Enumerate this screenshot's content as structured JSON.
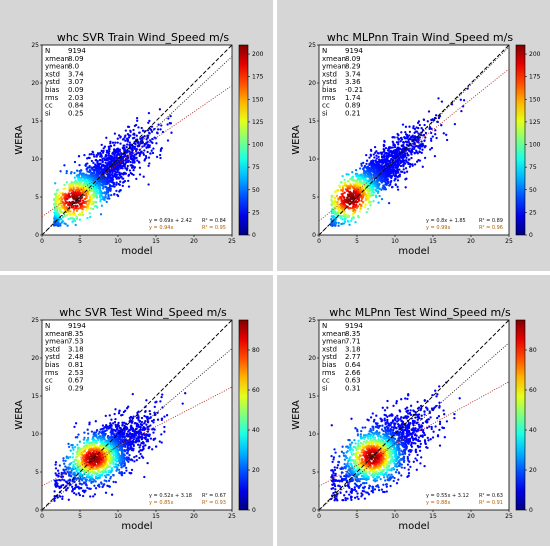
{
  "colors": {
    "fit_black": "#111111",
    "fit_orange": "#b35c00",
    "one_to_one": "#000000",
    "linear_fit": "#b22222",
    "zero_fit": "#222222",
    "panel_bg": "#d6d6d6"
  },
  "common": {
    "xlabel": "model",
    "ylabel": "WERA",
    "stat_names": [
      "N",
      "xmean",
      "ymean",
      "xstd",
      "ystd",
      "bias",
      "rms",
      "cc",
      "si"
    ]
  },
  "chart_data": [
    {
      "type": "scatter",
      "title": "whc SVR Train Wind_Speed m/s",
      "xlabel": "model",
      "ylabel": "WERA",
      "xlim": [
        0,
        25
      ],
      "ylim": [
        0,
        25
      ],
      "xticks": [
        "0",
        "5",
        "10",
        "15",
        "20",
        "25"
      ],
      "yticks": [
        "0",
        "5",
        "10",
        "15",
        "20",
        "25"
      ],
      "colorbar": {
        "min": 0,
        "max": 210,
        "ticks": [
          "0",
          "25",
          "50",
          "75",
          "100",
          "125",
          "150",
          "175",
          "200"
        ]
      },
      "stats": [
        "9194",
        "8.09",
        "8.0",
        "3.74",
        "3.07",
        "0.09",
        "2.03",
        "0.84",
        "0.25"
      ],
      "fit_linear": "y = 0.69x + 2.42",
      "r2_linear": "R² = 0.84",
      "fit_zero": "y = 0.94x",
      "r2_zero": "R² = 0.95",
      "slope": 0.69,
      "intercept": 2.42,
      "slope0": 0.94,
      "cloud": {
        "cx": 7.5,
        "cy": 7.5,
        "sx": 3.4,
        "sy": 2.9,
        "rho": 0.84,
        "hot": 4.3,
        "hot_y": 4.6
      }
    },
    {
      "type": "scatter",
      "title": "whc MLPnn Train Wind_Speed m/s",
      "xlabel": "model",
      "ylabel": "WERA",
      "xlim": [
        0,
        25
      ],
      "ylim": [
        0,
        25
      ],
      "xticks": [
        "0",
        "5",
        "10",
        "15",
        "20",
        "25"
      ],
      "yticks": [
        "0",
        "5",
        "10",
        "15",
        "20",
        "25"
      ],
      "colorbar": {
        "min": 0,
        "max": 210,
        "ticks": [
          "0",
          "25",
          "50",
          "75",
          "100",
          "125",
          "150",
          "175",
          "200"
        ]
      },
      "stats": [
        "9194",
        "8.09",
        "8.29",
        "3.74",
        "3.36",
        "-0.21",
        "1.74",
        "0.89",
        "0.21"
      ],
      "fit_linear": "y = 0.8x + 1.85",
      "r2_linear": "R² = 0.89",
      "fit_zero": "y = 0.99x",
      "r2_zero": "R² = 0.96",
      "slope": 0.8,
      "intercept": 1.85,
      "slope0": 0.99,
      "cloud": {
        "cx": 7.6,
        "cy": 7.8,
        "sx": 3.4,
        "sy": 3.1,
        "rho": 0.89,
        "hot": 4.2,
        "hot_y": 4.8
      }
    },
    {
      "type": "scatter",
      "title": "whc SVR Test Wind_Speed m/s",
      "xlabel": "model",
      "ylabel": "WERA",
      "xlim": [
        0,
        25
      ],
      "ylim": [
        0,
        25
      ],
      "xticks": [
        "0",
        "5",
        "10",
        "15",
        "20",
        "25"
      ],
      "yticks": [
        "0",
        "5",
        "10",
        "15",
        "20",
        "25"
      ],
      "colorbar": {
        "min": 0,
        "max": 95,
        "ticks": [
          "0",
          "20",
          "40",
          "60",
          "80"
        ]
      },
      "stats": [
        "9194",
        "8.35",
        "7.53",
        "3.18",
        "2.48",
        "0.81",
        "2.53",
        "0.67",
        "0.29"
      ],
      "fit_linear": "y = 0.52x + 3.18",
      "r2_linear": "R² = 0.67",
      "fit_zero": "y = 0.85x",
      "r2_zero": "R² = 0.93",
      "slope": 0.52,
      "intercept": 3.18,
      "slope0": 0.85,
      "cloud": {
        "cx": 8.3,
        "cy": 7.5,
        "sx": 3.0,
        "sy": 2.4,
        "rho": 0.67,
        "hot": 6.8,
        "hot_y": 6.8
      }
    },
    {
      "type": "scatter",
      "title": "whc MLPnn Test Wind_Speed m/s",
      "xlabel": "model",
      "ylabel": "WERA",
      "xlim": [
        0,
        25
      ],
      "ylim": [
        0,
        25
      ],
      "xticks": [
        "0",
        "5",
        "10",
        "15",
        "20",
        "25"
      ],
      "yticks": [
        "0",
        "5",
        "10",
        "15",
        "20",
        "25"
      ],
      "colorbar": {
        "min": 0,
        "max": 95,
        "ticks": [
          "0",
          "20",
          "40",
          "60",
          "80"
        ]
      },
      "stats": [
        "9194",
        "8.35",
        "7.71",
        "3.18",
        "2.77",
        "0.64",
        "2.66",
        "0.63",
        "0.31"
      ],
      "fit_linear": "y = 0.55x + 3.12",
      "r2_linear": "R² = 0.63",
      "fit_zero": "y = 0.88x",
      "r2_zero": "R² = 0.91",
      "slope": 0.55,
      "intercept": 3.12,
      "slope0": 0.88,
      "cloud": {
        "cx": 8.3,
        "cy": 7.7,
        "sx": 3.0,
        "sy": 2.7,
        "rho": 0.63,
        "hot": 7.0,
        "hot_y": 7.0
      }
    }
  ]
}
